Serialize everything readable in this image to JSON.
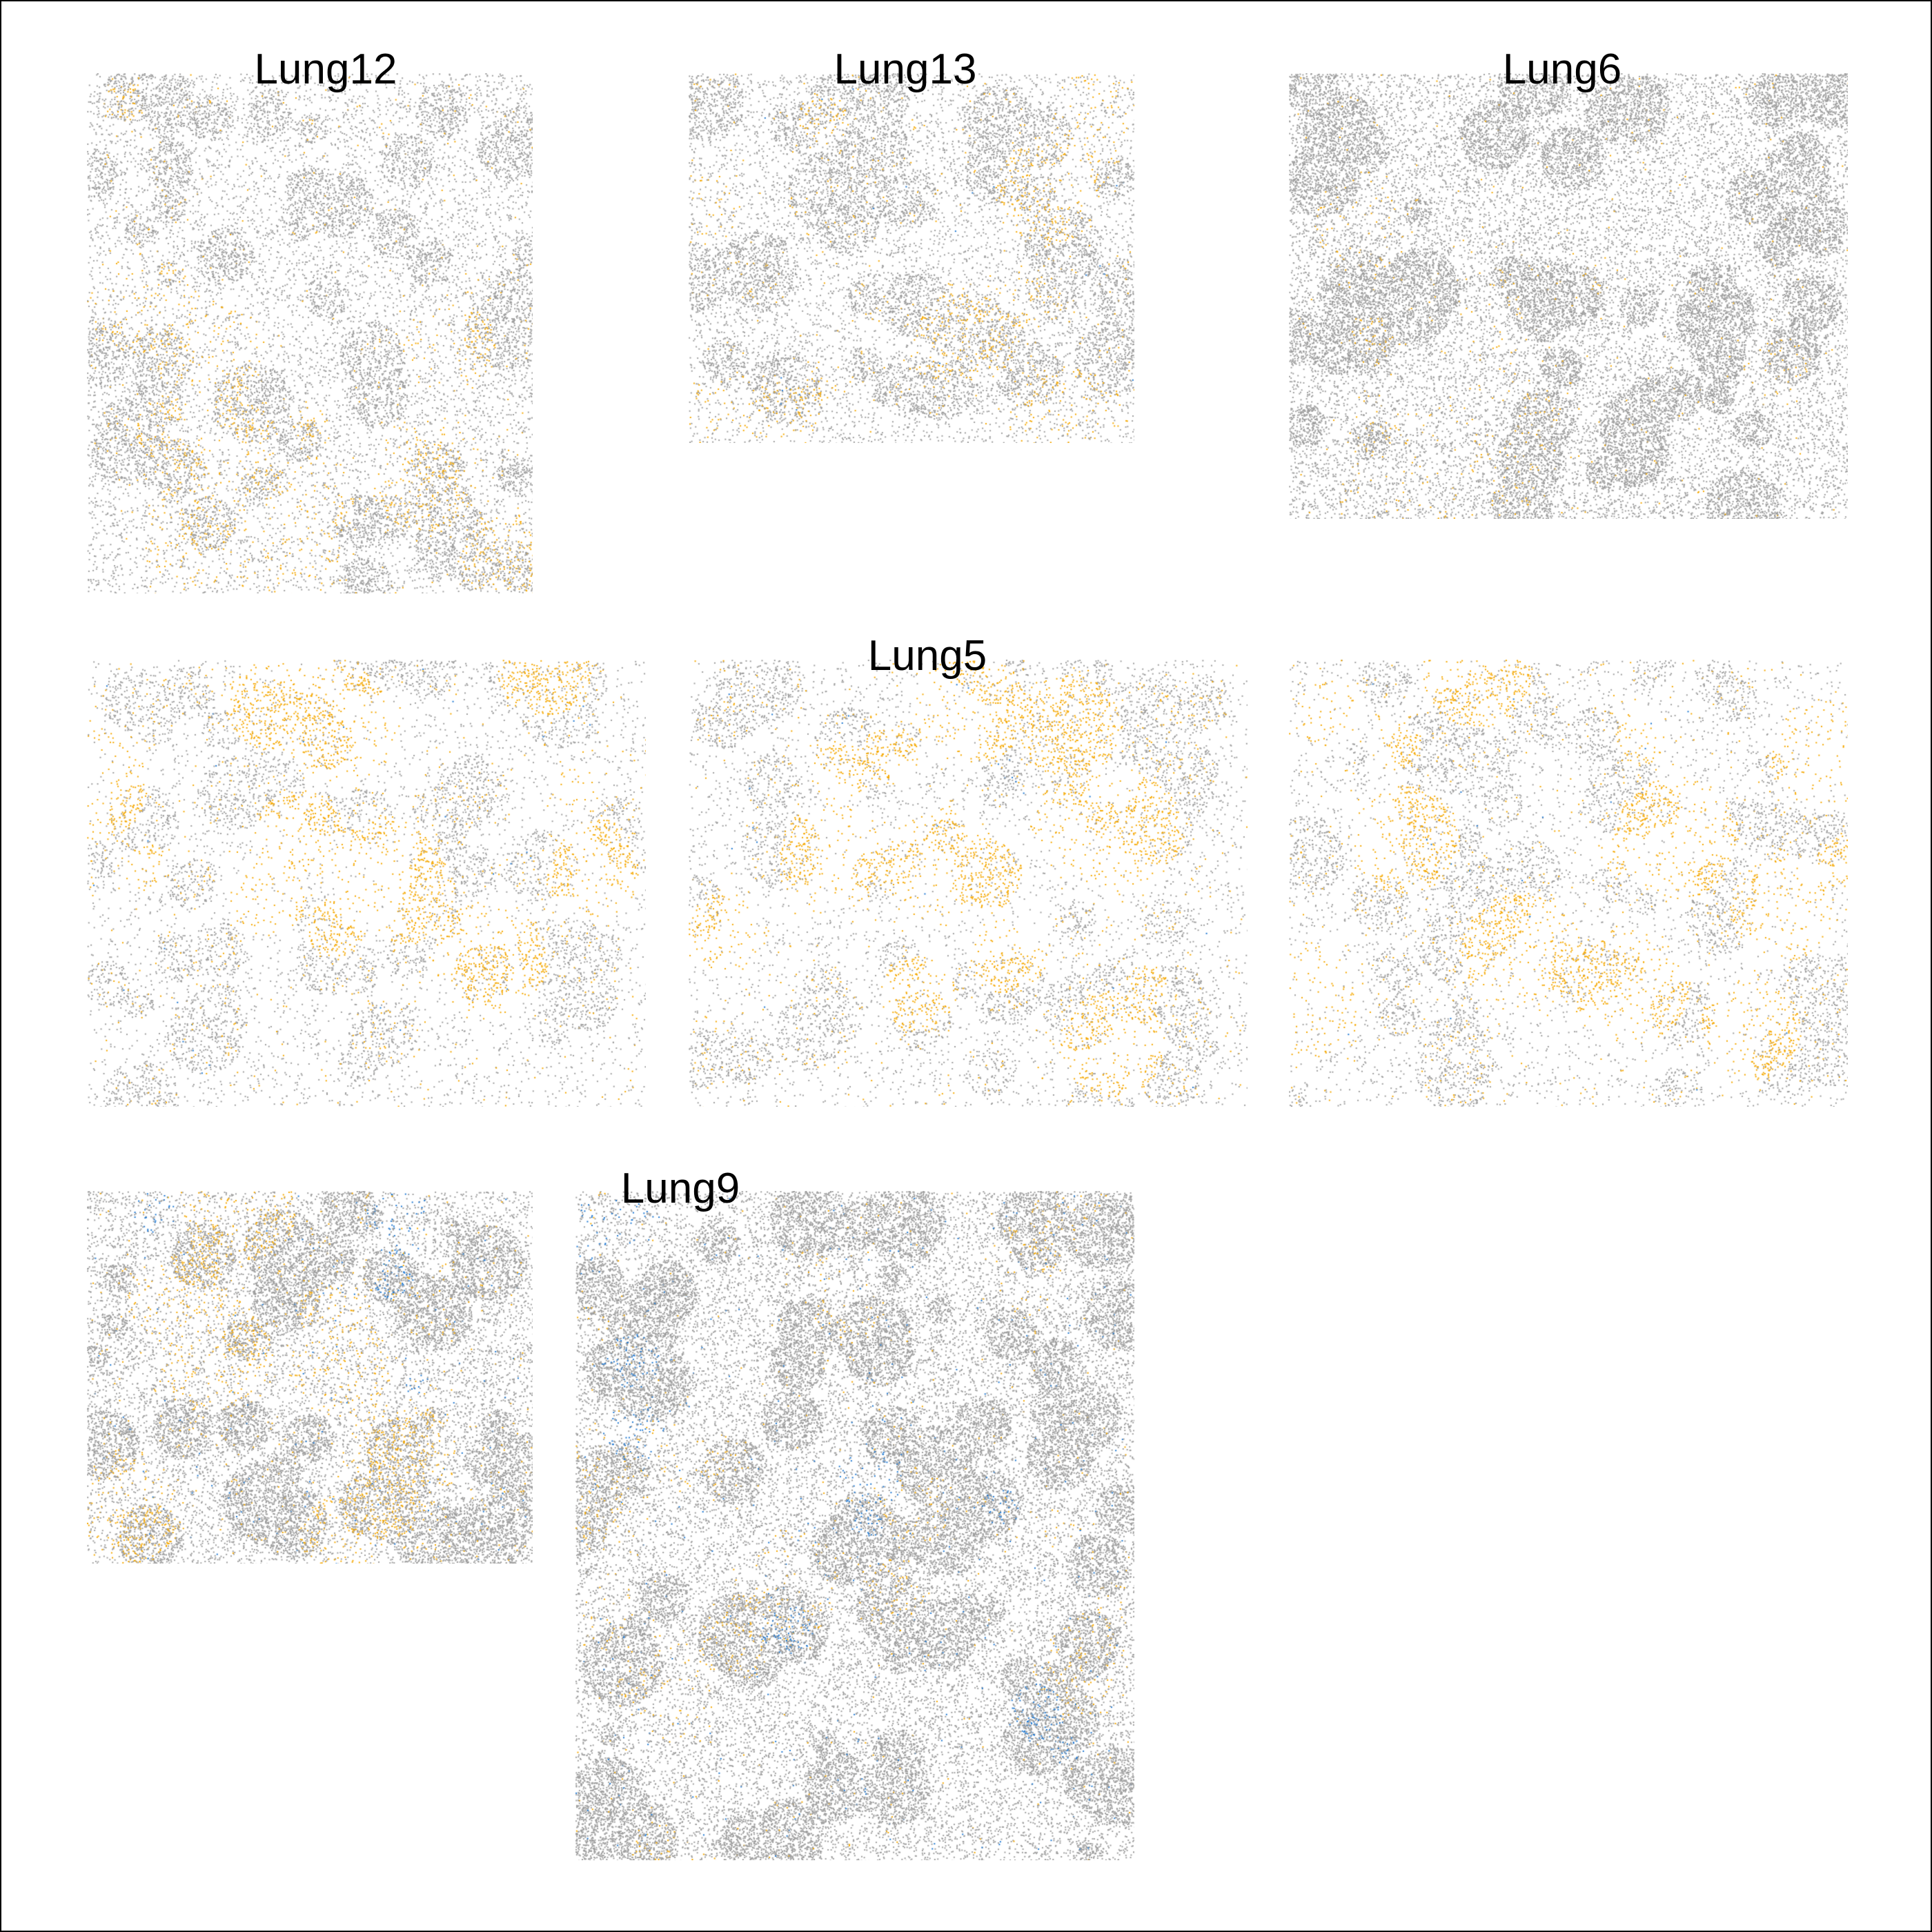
{
  "figure": {
    "labels": {
      "lung12": "Lung12",
      "lung13": "Lung13",
      "lung6": "Lung6",
      "lung5": "Lung5",
      "lung9": "Lung9"
    },
    "colors": {
      "background_cell": "#9e9e9e",
      "highlight_orange": "#f5a800",
      "highlight_blue": "#1f78d1"
    },
    "panels": [
      {
        "id": "p1",
        "sample": "Lung12",
        "density": "medium",
        "orange": "moderate",
        "blue": "none"
      },
      {
        "id": "p2",
        "sample": "Lung13",
        "density": "medium",
        "orange": "moderate",
        "blue": "sparse"
      },
      {
        "id": "p3",
        "sample": "Lung6",
        "density": "high",
        "orange": "sparse",
        "blue": "none"
      },
      {
        "id": "p4",
        "sample": "Lung5",
        "density": "low",
        "orange": "heavy",
        "blue": "sparse"
      },
      {
        "id": "p5",
        "sample": "Lung5",
        "density": "low",
        "orange": "heavy",
        "blue": "sparse"
      },
      {
        "id": "p6",
        "sample": "Lung5",
        "density": "low",
        "orange": "heavy",
        "blue": "sparse"
      },
      {
        "id": "p7",
        "sample": "Lung9",
        "density": "high",
        "orange": "moderate",
        "blue": "moderate"
      },
      {
        "id": "p8",
        "sample": "Lung9",
        "density": "high",
        "orange": "sparse",
        "blue": "moderate"
      }
    ]
  }
}
